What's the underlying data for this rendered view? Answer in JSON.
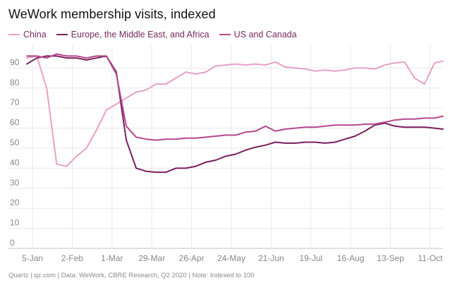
{
  "chart_data": {
    "type": "line",
    "title": "WeWork membership visits, indexed",
    "xlabel": "",
    "ylabel": "",
    "ylim": [
      0,
      100
    ],
    "y_ticks": [
      0,
      10,
      20,
      30,
      40,
      50,
      60,
      70,
      80,
      90
    ],
    "x_start": "2020-01-01",
    "x_end": "2020-10-20",
    "x_ticks": [
      {
        "date": "2020-01-05",
        "label": "5-Jan"
      },
      {
        "date": "2020-02-02",
        "label": "2-Feb"
      },
      {
        "date": "2020-03-01",
        "label": "1-Mar"
      },
      {
        "date": "2020-03-29",
        "label": "29-Mar"
      },
      {
        "date": "2020-04-26",
        "label": "26-Apr"
      },
      {
        "date": "2020-05-24",
        "label": "24-May"
      },
      {
        "date": "2020-06-21",
        "label": "21-Jun"
      },
      {
        "date": "2020-07-19",
        "label": "19-Jul"
      },
      {
        "date": "2020-08-16",
        "label": "16-Aug"
      },
      {
        "date": "2020-09-13",
        "label": "13-Sep"
      },
      {
        "date": "2020-10-11",
        "label": "11-Oct"
      }
    ],
    "grid": true,
    "legend_position": "top-left",
    "series": [
      {
        "name": "China",
        "color": "#e8a0c8",
        "points": [
          [
            "2020-01-01",
            95
          ],
          [
            "2020-01-08",
            96
          ],
          [
            "2020-01-15",
            80
          ],
          [
            "2020-01-22",
            42
          ],
          [
            "2020-01-29",
            41
          ],
          [
            "2020-02-05",
            46
          ],
          [
            "2020-02-12",
            50
          ],
          [
            "2020-02-19",
            59
          ],
          [
            "2020-02-26",
            69
          ],
          [
            "2020-03-04",
            72
          ],
          [
            "2020-03-11",
            75
          ],
          [
            "2020-03-18",
            78
          ],
          [
            "2020-03-25",
            79
          ],
          [
            "2020-04-01",
            82
          ],
          [
            "2020-04-08",
            82
          ],
          [
            "2020-04-15",
            85
          ],
          [
            "2020-04-22",
            88
          ],
          [
            "2020-04-29",
            87
          ],
          [
            "2020-05-06",
            88
          ],
          [
            "2020-05-13",
            91
          ],
          [
            "2020-05-20",
            91.5
          ],
          [
            "2020-05-27",
            92
          ],
          [
            "2020-06-03",
            91.5
          ],
          [
            "2020-06-10",
            92
          ],
          [
            "2020-06-17",
            91.5
          ],
          [
            "2020-06-24",
            93
          ],
          [
            "2020-07-01",
            90.5
          ],
          [
            "2020-07-08",
            90
          ],
          [
            "2020-07-15",
            89.5
          ],
          [
            "2020-07-22",
            88.5
          ],
          [
            "2020-07-29",
            89
          ],
          [
            "2020-08-05",
            88.5
          ],
          [
            "2020-08-12",
            89
          ],
          [
            "2020-08-19",
            90
          ],
          [
            "2020-08-26",
            90
          ],
          [
            "2020-09-02",
            89.5
          ],
          [
            "2020-09-09",
            91.5
          ],
          [
            "2020-09-16",
            92.5
          ],
          [
            "2020-09-23",
            93
          ],
          [
            "2020-09-30",
            85
          ],
          [
            "2020-10-07",
            82
          ],
          [
            "2020-10-14",
            92.5
          ],
          [
            "2020-10-20",
            93.5
          ]
        ]
      },
      {
        "name": "Europe, the Middle East, and Africa",
        "color": "#7a1f5c",
        "points": [
          [
            "2020-01-01",
            92
          ],
          [
            "2020-01-08",
            95
          ],
          [
            "2020-01-15",
            96
          ],
          [
            "2020-01-22",
            96
          ],
          [
            "2020-01-29",
            95
          ],
          [
            "2020-02-05",
            95
          ],
          [
            "2020-02-12",
            94
          ],
          [
            "2020-02-19",
            95
          ],
          [
            "2020-02-26",
            96
          ],
          [
            "2020-03-04",
            88
          ],
          [
            "2020-03-11",
            54
          ],
          [
            "2020-03-18",
            40
          ],
          [
            "2020-03-25",
            38.5
          ],
          [
            "2020-04-01",
            38
          ],
          [
            "2020-04-08",
            38
          ],
          [
            "2020-04-15",
            40
          ],
          [
            "2020-04-22",
            40
          ],
          [
            "2020-04-29",
            41
          ],
          [
            "2020-05-06",
            43
          ],
          [
            "2020-05-13",
            44
          ],
          [
            "2020-05-20",
            46
          ],
          [
            "2020-05-27",
            47
          ],
          [
            "2020-06-03",
            49
          ],
          [
            "2020-06-10",
            50.5
          ],
          [
            "2020-06-17",
            51.5
          ],
          [
            "2020-06-24",
            53
          ],
          [
            "2020-07-01",
            52.5
          ],
          [
            "2020-07-08",
            52.5
          ],
          [
            "2020-07-15",
            53
          ],
          [
            "2020-07-22",
            53
          ],
          [
            "2020-07-29",
            52.5
          ],
          [
            "2020-08-05",
            53
          ],
          [
            "2020-08-12",
            54.5
          ],
          [
            "2020-08-19",
            56
          ],
          [
            "2020-08-26",
            58.5
          ],
          [
            "2020-09-02",
            61.5
          ],
          [
            "2020-09-09",
            62.5
          ],
          [
            "2020-09-16",
            61
          ],
          [
            "2020-09-23",
            60.5
          ],
          [
            "2020-09-30",
            60.5
          ],
          [
            "2020-10-07",
            60.5
          ],
          [
            "2020-10-14",
            60
          ],
          [
            "2020-10-20",
            59.5
          ]
        ]
      },
      {
        "name": "US and Canada",
        "color": "#b5488e",
        "points": [
          [
            "2020-01-01",
            96
          ],
          [
            "2020-01-08",
            96
          ],
          [
            "2020-01-15",
            95
          ],
          [
            "2020-01-22",
            97
          ],
          [
            "2020-01-29",
            96
          ],
          [
            "2020-02-05",
            96
          ],
          [
            "2020-02-12",
            95
          ],
          [
            "2020-02-19",
            96
          ],
          [
            "2020-02-26",
            96
          ],
          [
            "2020-03-04",
            87
          ],
          [
            "2020-03-11",
            61
          ],
          [
            "2020-03-18",
            55.5
          ],
          [
            "2020-03-25",
            54.5
          ],
          [
            "2020-04-01",
            54
          ],
          [
            "2020-04-08",
            54.5
          ],
          [
            "2020-04-15",
            54.5
          ],
          [
            "2020-04-22",
            55
          ],
          [
            "2020-04-29",
            55
          ],
          [
            "2020-05-06",
            55.5
          ],
          [
            "2020-05-13",
            56
          ],
          [
            "2020-05-20",
            56.5
          ],
          [
            "2020-05-27",
            56.5
          ],
          [
            "2020-06-03",
            58
          ],
          [
            "2020-06-10",
            58.5
          ],
          [
            "2020-06-17",
            61
          ],
          [
            "2020-06-24",
            58.5
          ],
          [
            "2020-07-01",
            59.5
          ],
          [
            "2020-07-08",
            60
          ],
          [
            "2020-07-15",
            60.5
          ],
          [
            "2020-07-22",
            60.5
          ],
          [
            "2020-07-29",
            61
          ],
          [
            "2020-08-05",
            61.5
          ],
          [
            "2020-08-12",
            61.5
          ],
          [
            "2020-08-19",
            61.5
          ],
          [
            "2020-08-26",
            62
          ],
          [
            "2020-09-02",
            62
          ],
          [
            "2020-09-09",
            63
          ],
          [
            "2020-09-16",
            64
          ],
          [
            "2020-09-23",
            64.5
          ],
          [
            "2020-09-30",
            64.5
          ],
          [
            "2020-10-07",
            65
          ],
          [
            "2020-10-14",
            65
          ],
          [
            "2020-10-20",
            66
          ]
        ]
      }
    ]
  },
  "source_note": "Quartz | qz.com | Data: WeWork, CBRE Research, Q2 2020 | Note: Indexed to 100",
  "colors": {
    "grid": "#e8e8e8",
    "axis": "#c0c0c0",
    "tick_label": "#888888"
  }
}
